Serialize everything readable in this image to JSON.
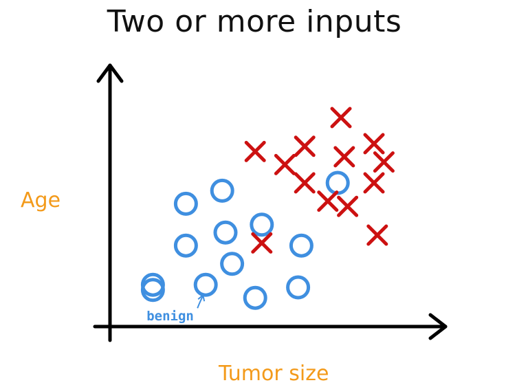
{
  "chart_data": {
    "type": "scatter",
    "title": "Two or more inputs",
    "xlabel": "Tumor size",
    "ylabel": "Age",
    "grid": false,
    "legend": "none",
    "axis_ticks": "none",
    "xlim": [
      0,
      10
    ],
    "ylim": [
      0,
      10
    ],
    "series": [
      {
        "marker": "circle",
        "color": "#3f8fe0",
        "points": [
          [
            1.3,
            1.6
          ],
          [
            2.9,
            1.6
          ],
          [
            3.7,
            2.4
          ],
          [
            2.3,
            3.1
          ],
          [
            3.5,
            3.6
          ],
          [
            4.6,
            3.9
          ],
          [
            2.3,
            4.7
          ],
          [
            3.4,
            5.2
          ],
          [
            5.8,
            3.1
          ],
          [
            1.3,
            1.4
          ],
          [
            4.4,
            1.1
          ],
          [
            5.7,
            1.5
          ],
          [
            6.9,
            5.5
          ]
        ]
      },
      {
        "marker": "x",
        "color": "#cc1111",
        "points": [
          [
            4.4,
            6.7
          ],
          [
            5.3,
            6.2
          ],
          [
            5.9,
            6.9
          ],
          [
            5.9,
            5.5
          ],
          [
            6.6,
            4.8
          ],
          [
            7.2,
            4.6
          ],
          [
            7.0,
            8.0
          ],
          [
            7.1,
            6.5
          ],
          [
            8.0,
            7.0
          ],
          [
            8.3,
            6.3
          ],
          [
            8.0,
            5.5
          ],
          [
            8.1,
            3.5
          ],
          [
            4.6,
            3.2
          ]
        ]
      }
    ],
    "annotations": [
      {
        "text": "benign",
        "color": "#3f8fe0",
        "points_to": [
          2.9,
          1.6
        ]
      }
    ]
  }
}
